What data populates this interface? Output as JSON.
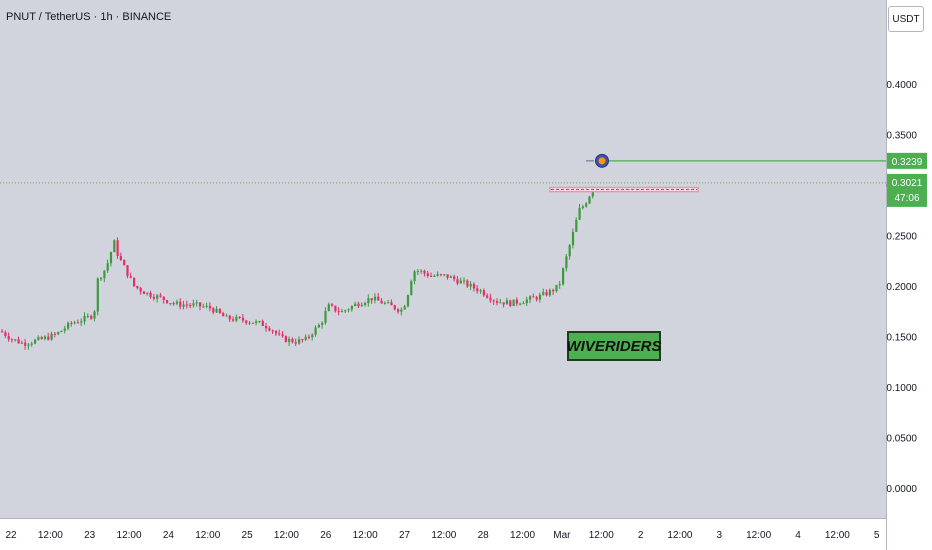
{
  "chart_data": {
    "type": "candlestick",
    "title": "PNUT / TetherUS · 1h · BINANCE",
    "currency_button": "USDT",
    "y_ticks": [
      "0.0000",
      "0.0500",
      "0.1000",
      "0.1500",
      "0.2000",
      "0.2500",
      "0.3000",
      "0.3500",
      "0.4000"
    ],
    "ylim": [
      -0.018,
      0.47
    ],
    "x_ticks": [
      "22",
      "12:00",
      "23",
      "12:00",
      "24",
      "12:00",
      "25",
      "12:00",
      "26",
      "12:00",
      "27",
      "12:00",
      "28",
      "12:00",
      "Mar",
      "12:00",
      "2",
      "12:00",
      "3",
      "12:00",
      "4",
      "12:00",
      "5"
    ],
    "price_profile": [
      [
        0,
        0.155
      ],
      [
        10,
        0.148
      ],
      [
        22,
        0.143
      ],
      [
        40,
        0.147
      ],
      [
        55,
        0.152
      ],
      [
        70,
        0.163
      ],
      [
        85,
        0.168
      ],
      [
        93,
        0.172
      ],
      [
        96,
        0.205
      ],
      [
        103,
        0.215
      ],
      [
        109,
        0.228
      ],
      [
        112,
        0.247
      ],
      [
        117,
        0.23
      ],
      [
        125,
        0.215
      ],
      [
        133,
        0.2
      ],
      [
        145,
        0.193
      ],
      [
        160,
        0.188
      ],
      [
        175,
        0.182
      ],
      [
        195,
        0.181
      ],
      [
        210,
        0.178
      ],
      [
        225,
        0.168
      ],
      [
        245,
        0.166
      ],
      [
        262,
        0.162
      ],
      [
        270,
        0.158
      ],
      [
        280,
        0.148
      ],
      [
        295,
        0.145
      ],
      [
        305,
        0.147
      ],
      [
        312,
        0.155
      ],
      [
        320,
        0.163
      ],
      [
        327,
        0.18
      ],
      [
        340,
        0.174
      ],
      [
        355,
        0.182
      ],
      [
        370,
        0.188
      ],
      [
        385,
        0.182
      ],
      [
        400,
        0.176
      ],
      [
        405,
        0.185
      ],
      [
        412,
        0.215
      ],
      [
        418,
        0.215
      ],
      [
        430,
        0.21
      ],
      [
        445,
        0.21
      ],
      [
        460,
        0.204
      ],
      [
        480,
        0.195
      ],
      [
        495,
        0.185
      ],
      [
        510,
        0.183
      ],
      [
        525,
        0.186
      ],
      [
        540,
        0.19
      ],
      [
        550,
        0.195
      ],
      [
        558,
        0.2
      ],
      [
        563,
        0.22
      ],
      [
        570,
        0.245
      ],
      [
        578,
        0.275
      ],
      [
        583,
        0.28
      ],
      [
        588,
        0.289
      ],
      [
        592,
        0.3
      ]
    ],
    "last_price": "0.3021",
    "last_price_value": 0.3021,
    "countdown": "47:06",
    "target_price": "0.3239",
    "target_price_value": 0.3239,
    "resistance_zone": [
      0.2975,
      0.2935
    ],
    "watermark": "WIVERIDERS",
    "colors": {
      "background": "#d1d4dc",
      "axis_background": "#ffffff",
      "up": "#26a69a",
      "up_body": "#3c9a3c",
      "down": "#ef5350",
      "down_body": "#e0306a",
      "price_line": "#4caf50",
      "zone": "#f48fb1",
      "target_line": "#4caf50"
    }
  }
}
